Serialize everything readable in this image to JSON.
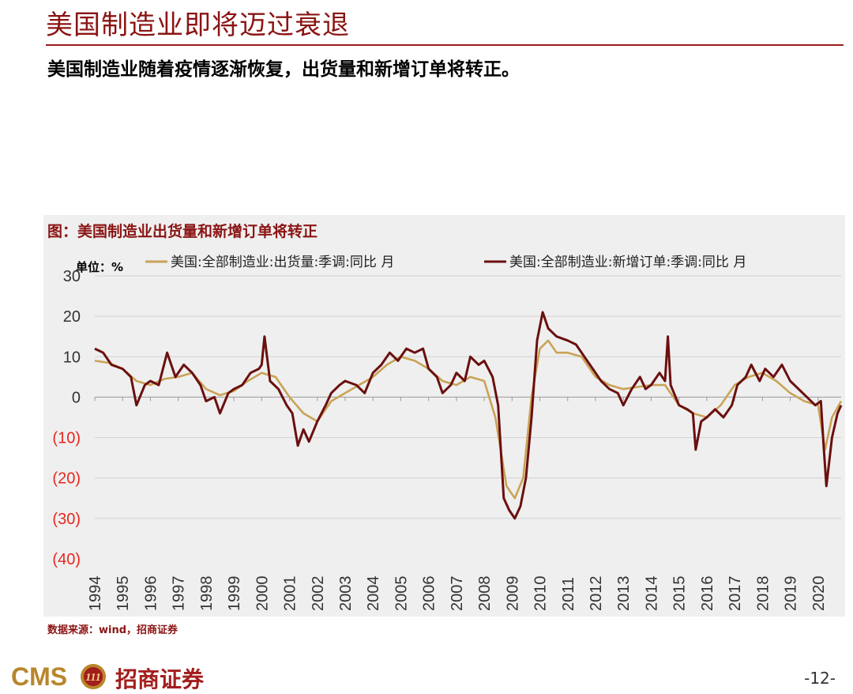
{
  "header": {
    "title": "美国制造业即将迈过衰退",
    "subtitle": "美国制造业随着疫情逐渐恢复，出货量和新增订单将转正。"
  },
  "footer": {
    "source": "数据来源：wind，招商证券",
    "logo_text": "CMS",
    "logo_mark": "111",
    "company_name": "招商证券",
    "page_number": "-12-"
  },
  "colors": {
    "series_shipments": "#c9a357",
    "series_new_orders": "#6b0f0f",
    "negative_tick": "#e8261e",
    "accent": "#8b1414",
    "panel_background": "#efefef"
  },
  "chart_data": {
    "type": "line",
    "title": "图：美国制造业出货量和新增订单将转正",
    "unit_label": "单位：%",
    "ylim": [
      -40,
      30
    ],
    "y_ticks": [
      30,
      20,
      10,
      0,
      -10,
      -20,
      -30,
      -40
    ],
    "y_tick_labels": [
      "30",
      "20",
      "10",
      "0",
      "(10)",
      "(20)",
      "(30)",
      "(40)"
    ],
    "negative_ticks_red": true,
    "grid": true,
    "legend_position": "top",
    "x_ticks": [
      "1994",
      "1995",
      "1996",
      "1997",
      "1998",
      "1999",
      "2000",
      "2001",
      "2002",
      "2003",
      "2004",
      "2005",
      "2006",
      "2007",
      "2008",
      "2009",
      "2010",
      "2011",
      "2012",
      "2013",
      "2014",
      "2015",
      "2016",
      "2017",
      "2018",
      "2019",
      "2020"
    ],
    "x_start": 1994.0,
    "x_end": 2020.83,
    "series": [
      {
        "name": "美国:全部制造业:出货量:季调:同比 月",
        "points": [
          [
            1994.0,
            9
          ],
          [
            1994.5,
            8.5
          ],
          [
            1995.0,
            7
          ],
          [
            1995.5,
            4
          ],
          [
            1996.0,
            3
          ],
          [
            1996.5,
            4.5
          ],
          [
            1997.0,
            5
          ],
          [
            1997.5,
            6
          ],
          [
            1998.0,
            2
          ],
          [
            1998.5,
            0.5
          ],
          [
            1999.0,
            1.5
          ],
          [
            1999.5,
            4
          ],
          [
            2000.0,
            6
          ],
          [
            2000.5,
            5
          ],
          [
            2001.0,
            0
          ],
          [
            2001.5,
            -4
          ],
          [
            2002.0,
            -6
          ],
          [
            2002.5,
            -1
          ],
          [
            2003.0,
            1
          ],
          [
            2003.5,
            3
          ],
          [
            2004.0,
            5
          ],
          [
            2004.5,
            8
          ],
          [
            2005.0,
            10
          ],
          [
            2005.5,
            9
          ],
          [
            2006.0,
            7
          ],
          [
            2006.5,
            4
          ],
          [
            2007.0,
            3
          ],
          [
            2007.5,
            5
          ],
          [
            2008.0,
            4
          ],
          [
            2008.4,
            -5
          ],
          [
            2008.8,
            -22
          ],
          [
            2009.1,
            -25
          ],
          [
            2009.4,
            -20
          ],
          [
            2009.7,
            0
          ],
          [
            2010.0,
            12
          ],
          [
            2010.3,
            14
          ],
          [
            2010.6,
            11
          ],
          [
            2011.0,
            11
          ],
          [
            2011.5,
            10
          ],
          [
            2012.0,
            5
          ],
          [
            2012.5,
            3
          ],
          [
            2013.0,
            2
          ],
          [
            2013.5,
            2.5
          ],
          [
            2014.0,
            3
          ],
          [
            2014.5,
            3
          ],
          [
            2015.0,
            -2
          ],
          [
            2015.5,
            -4
          ],
          [
            2016.0,
            -5
          ],
          [
            2016.5,
            -2
          ],
          [
            2017.0,
            3
          ],
          [
            2017.5,
            5
          ],
          [
            2018.0,
            6
          ],
          [
            2018.5,
            4
          ],
          [
            2019.0,
            1
          ],
          [
            2019.5,
            -1
          ],
          [
            2020.0,
            -2
          ],
          [
            2020.25,
            -13
          ],
          [
            2020.5,
            -5
          ],
          [
            2020.83,
            -1
          ]
        ]
      },
      {
        "name": "美国:全部制造业:新增订单:季调:同比 月",
        "points": [
          [
            1994.0,
            12
          ],
          [
            1994.3,
            11
          ],
          [
            1994.6,
            8
          ],
          [
            1995.0,
            7
          ],
          [
            1995.3,
            5
          ],
          [
            1995.5,
            -2
          ],
          [
            1995.8,
            3
          ],
          [
            1996.0,
            4
          ],
          [
            1996.3,
            3
          ],
          [
            1996.6,
            11
          ],
          [
            1996.9,
            5
          ],
          [
            1997.2,
            8
          ],
          [
            1997.5,
            6
          ],
          [
            1997.8,
            3
          ],
          [
            1998.0,
            -1
          ],
          [
            1998.3,
            0
          ],
          [
            1998.5,
            -4
          ],
          [
            1998.8,
            1
          ],
          [
            1999.0,
            2
          ],
          [
            1999.3,
            3
          ],
          [
            1999.6,
            6
          ],
          [
            1999.9,
            7
          ],
          [
            2000.0,
            8
          ],
          [
            2000.1,
            15
          ],
          [
            2000.3,
            4
          ],
          [
            2000.6,
            2
          ],
          [
            2000.9,
            -2
          ],
          [
            2001.1,
            -4
          ],
          [
            2001.3,
            -12
          ],
          [
            2001.5,
            -8
          ],
          [
            2001.7,
            -11
          ],
          [
            2002.0,
            -6
          ],
          [
            2002.3,
            -2
          ],
          [
            2002.5,
            1
          ],
          [
            2002.8,
            3
          ],
          [
            2003.0,
            4
          ],
          [
            2003.4,
            3
          ],
          [
            2003.7,
            1
          ],
          [
            2004.0,
            6
          ],
          [
            2004.3,
            8
          ],
          [
            2004.6,
            11
          ],
          [
            2004.9,
            9
          ],
          [
            2005.2,
            12
          ],
          [
            2005.5,
            11
          ],
          [
            2005.8,
            12
          ],
          [
            2006.0,
            7
          ],
          [
            2006.3,
            5
          ],
          [
            2006.5,
            1
          ],
          [
            2006.8,
            3
          ],
          [
            2007.0,
            6
          ],
          [
            2007.3,
            4
          ],
          [
            2007.5,
            10
          ],
          [
            2007.8,
            8
          ],
          [
            2008.0,
            9
          ],
          [
            2008.3,
            5
          ],
          [
            2008.5,
            -2
          ],
          [
            2008.7,
            -25
          ],
          [
            2008.9,
            -28
          ],
          [
            2009.1,
            -30
          ],
          [
            2009.3,
            -27
          ],
          [
            2009.5,
            -20
          ],
          [
            2009.7,
            -5
          ],
          [
            2009.9,
            14
          ],
          [
            2010.1,
            21
          ],
          [
            2010.3,
            17
          ],
          [
            2010.6,
            15
          ],
          [
            2011.0,
            14
          ],
          [
            2011.3,
            13
          ],
          [
            2011.6,
            10
          ],
          [
            2011.9,
            7
          ],
          [
            2012.2,
            4
          ],
          [
            2012.5,
            2
          ],
          [
            2012.8,
            1
          ],
          [
            2013.0,
            -2
          ],
          [
            2013.3,
            2
          ],
          [
            2013.6,
            5
          ],
          [
            2013.8,
            2
          ],
          [
            2014.0,
            3
          ],
          [
            2014.3,
            6
          ],
          [
            2014.5,
            4
          ],
          [
            2014.6,
            15
          ],
          [
            2014.7,
            3
          ],
          [
            2015.0,
            -2
          ],
          [
            2015.3,
            -3
          ],
          [
            2015.5,
            -4
          ],
          [
            2015.6,
            -13
          ],
          [
            2015.8,
            -6
          ],
          [
            2016.0,
            -5
          ],
          [
            2016.3,
            -3
          ],
          [
            2016.6,
            -5
          ],
          [
            2016.9,
            -2
          ],
          [
            2017.1,
            3
          ],
          [
            2017.4,
            5
          ],
          [
            2017.6,
            8
          ],
          [
            2017.9,
            4
          ],
          [
            2018.1,
            7
          ],
          [
            2018.4,
            5
          ],
          [
            2018.7,
            8
          ],
          [
            2019.0,
            4
          ],
          [
            2019.3,
            2
          ],
          [
            2019.6,
            0
          ],
          [
            2019.9,
            -2
          ],
          [
            2020.1,
            -1
          ],
          [
            2020.2,
            -12
          ],
          [
            2020.3,
            -22
          ],
          [
            2020.5,
            -10
          ],
          [
            2020.7,
            -4
          ],
          [
            2020.83,
            -2
          ]
        ]
      }
    ]
  }
}
